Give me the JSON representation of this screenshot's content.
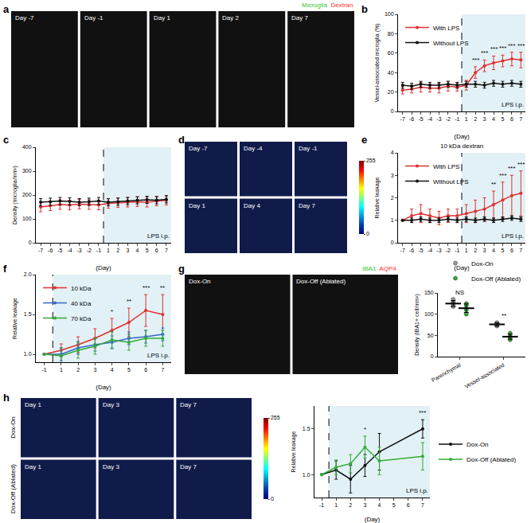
{
  "chart_data": [
    {
      "type": "line",
      "panel": "b",
      "categories": [
        "-7",
        "-6",
        "-5",
        "-4",
        "-3",
        "-2",
        "-1",
        "1",
        "2",
        "3",
        "4",
        "5",
        "6",
        "7"
      ],
      "series": [
        {
          "name": "With LPS",
          "color": "#e03030",
          "values": [
            22,
            23,
            25,
            24,
            24,
            26,
            25,
            27,
            40,
            47,
            50,
            52,
            54,
            53
          ],
          "errors": [
            4,
            4,
            5,
            4,
            5,
            5,
            4,
            5,
            6,
            6,
            7,
            6,
            7,
            8
          ]
        },
        {
          "name": "Without LPS",
          "color": "#111111",
          "values": [
            27,
            26,
            28,
            27,
            27,
            28,
            27,
            28,
            28,
            27,
            29,
            28,
            29,
            28
          ],
          "errors": [
            3,
            3,
            3,
            3,
            3,
            3,
            3,
            3,
            3,
            3,
            3,
            3,
            3,
            3
          ]
        }
      ],
      "x_label": "(Day)",
      "y_label": "Vessel-associated microglia (%)",
      "ylim": [
        0,
        100
      ],
      "yticks": [
        0,
        20,
        40,
        60,
        80,
        100
      ],
      "legend": "upper left",
      "shade_label": "LPS i.p.",
      "shade_from": "1",
      "annotations": [
        {
          "category": "2",
          "text": "***"
        },
        {
          "category": "3",
          "text": "***"
        },
        {
          "category": "4",
          "text": "***"
        },
        {
          "category": "5",
          "text": "***"
        },
        {
          "category": "6",
          "text": "***"
        },
        {
          "category": "7",
          "text": "***"
        }
      ]
    },
    {
      "type": "line",
      "panel": "c",
      "categories": [
        "-7",
        "-6",
        "-5",
        "-4",
        "-3",
        "-2",
        "-1",
        "1",
        "2",
        "3",
        "4",
        "5",
        "6",
        "7"
      ],
      "series": [
        {
          "name": "With LPS",
          "color": "#e03030",
          "values": [
            150,
            155,
            160,
            158,
            162,
            160,
            158,
            165,
            168,
            170,
            172,
            170,
            175,
            178
          ],
          "errors": [
            20,
            20,
            20,
            20,
            20,
            20,
            20,
            20,
            20,
            20,
            20,
            20,
            20,
            20
          ]
        },
        {
          "name": "Without LPS",
          "color": "#111111",
          "values": [
            170,
            172,
            175,
            173,
            170,
            172,
            175,
            170,
            172,
            175,
            178,
            180,
            178,
            182
          ],
          "errors": [
            15,
            15,
            15,
            15,
            15,
            15,
            15,
            15,
            15,
            15,
            15,
            15,
            15,
            15
          ]
        }
      ],
      "x_label": "(Day)",
      "y_label": "Density (microglia/mm²)",
      "ylim": [
        0,
        400
      ],
      "yticks": [
        0,
        100,
        200,
        300,
        400
      ],
      "shade_label": "LPS i.p.",
      "shade_from": "1",
      "annotations": []
    },
    {
      "type": "line",
      "panel": "e",
      "title": "10 kDa dextran",
      "categories": [
        "-7",
        "-6",
        "-5",
        "-4",
        "-3",
        "-2",
        "-1",
        "1",
        "2",
        "3",
        "4",
        "5",
        "6",
        "7"
      ],
      "series": [
        {
          "name": "With LPS",
          "color": "#e03030",
          "values": [
            1.0,
            1.2,
            1.3,
            1.2,
            1.1,
            1.2,
            1.2,
            1.3,
            1.4,
            1.5,
            1.7,
            1.9,
            2.1,
            2.2
          ],
          "errors": [
            0,
            0.3,
            0.4,
            0.3,
            0.3,
            0.3,
            0.3,
            0.4,
            0.5,
            0.5,
            0.6,
            0.8,
            0.9,
            1.0
          ]
        },
        {
          "name": "Without LPS",
          "color": "#111111",
          "values": [
            1.0,
            1.0,
            1.05,
            1.0,
            1.0,
            1.05,
            1.0,
            1.05,
            1.0,
            1.05,
            1.0,
            1.05,
            1.1,
            1.05
          ],
          "errors": [
            0,
            0.1,
            0.1,
            0.1,
            0.1,
            0.1,
            0.1,
            0.1,
            0.1,
            0.1,
            0.1,
            0.1,
            0.1,
            0.1
          ]
        }
      ],
      "x_label": "(Day)",
      "y_label": "Relative leakage",
      "ylim": [
        0,
        4
      ],
      "yticks": [
        0,
        1,
        2,
        3,
        4
      ],
      "legend": "upper left",
      "shade_label": "LPS i.p.",
      "shade_from": "1",
      "annotations": [
        {
          "category": "4",
          "text": "**"
        },
        {
          "category": "5",
          "text": "***"
        },
        {
          "category": "6",
          "text": "***"
        },
        {
          "category": "7",
          "text": "***"
        }
      ]
    },
    {
      "type": "line",
      "panel": "f",
      "categories": [
        "-1",
        "1",
        "2",
        "3",
        "4",
        "5",
        "6",
        "7"
      ],
      "series": [
        {
          "name": "10 kDa",
          "color": "#e03030",
          "values": [
            1.0,
            1.05,
            1.12,
            1.2,
            1.3,
            1.4,
            1.55,
            1.5
          ],
          "errors": [
            0,
            0.08,
            0.1,
            0.12,
            0.15,
            0.18,
            0.2,
            0.25
          ]
        },
        {
          "name": "40 kDa",
          "color": "#3366cc",
          "values": [
            1.0,
            1.0,
            1.08,
            1.12,
            1.15,
            1.2,
            1.22,
            1.25
          ],
          "errors": [
            0,
            0.08,
            0.08,
            0.08,
            0.08,
            0.08,
            0.08,
            0.08
          ]
        },
        {
          "name": "70 kDa",
          "color": "#33aa33",
          "values": [
            1.0,
            0.98,
            1.05,
            1.1,
            1.18,
            1.15,
            1.2,
            1.2
          ],
          "errors": [
            0,
            0.1,
            0.1,
            0.1,
            0.1,
            0.1,
            0.1,
            0.1
          ]
        }
      ],
      "x_label": "(Day)",
      "y_label": "Relative leakage",
      "ylim": [
        0.9,
        2.0
      ],
      "yticks": [
        {
          "value": 1,
          "label": "1.0"
        },
        1.5,
        {
          "value": 2,
          "label": "2.0"
        }
      ],
      "legend": "upper left",
      "shade_label": "LPS i.p.",
      "shade_from": "1",
      "annotations": [
        {
          "category": "4",
          "text": "*"
        },
        {
          "category": "5",
          "text": "**"
        },
        {
          "category": "6",
          "text": "***"
        },
        {
          "category": "7",
          "text": "**"
        }
      ]
    },
    {
      "type": "dot",
      "categories": [
        "Parenchymal",
        "Vessel-associated"
      ],
      "series": [
        {
          "name": "Dox-On",
          "color": "#999999",
          "points": [
            [
              120,
              128,
              125,
              135,
              118
            ],
            [
              72,
              78,
              80,
              74
            ]
          ],
          "values": [
            125,
            76
          ],
          "errors": [
            7,
            4
          ]
        },
        {
          "name": "Dox-Off (Ablated)",
          "color": "#33aa33",
          "points": [
            [
              110,
              100,
              125,
              120
            ],
            [
              40,
              48,
              55,
              45
            ]
          ],
          "values": [
            114,
            47
          ],
          "errors": [
            10,
            6
          ]
        }
      ],
      "y_label": "Density (IBA1+ cell/mm²)",
      "ylim": [
        0,
        150
      ],
      "yticks": [
        0,
        50,
        100,
        150
      ],
      "legend": "upper right",
      "annotations": [
        {
          "category": "Parenchymal",
          "text": "NS"
        },
        {
          "category": "Vessel-associated",
          "text": "**"
        }
      ]
    },
    {
      "type": "line",
      "categories": [
        "-1",
        "1",
        "2",
        "3",
        "4",
        "5",
        "6",
        "7"
      ],
      "series": [
        {
          "name": "Dox-On",
          "color": "#111111",
          "values": [
            1.0,
            1.05,
            0.95,
            1.1,
            1.25,
            null,
            null,
            1.5
          ],
          "errors": [
            0,
            0.1,
            0.15,
            0.12,
            0.2,
            null,
            null,
            0.1
          ]
        },
        {
          "name": "Dox-Off (Ablated)",
          "color": "#33aa33",
          "values": [
            1.0,
            1.08,
            1.12,
            1.3,
            1.15,
            null,
            null,
            1.2
          ],
          "errors": [
            0,
            0.08,
            0.1,
            0.12,
            0.15,
            null,
            null,
            0.15
          ]
        }
      ],
      "x_label": "(Day)",
      "y_label": "Relative leakage",
      "ylim": [
        0.75,
        1.75
      ],
      "yticks": [
        {
          "value": 1,
          "label": "1.0"
        },
        1.5
      ],
      "legend": "right",
      "shade_label": "LPS i.p.",
      "shade_from": "1",
      "annotations": [
        {
          "category": "3",
          "text": "*"
        },
        {
          "category": "7",
          "text": "***"
        }
      ]
    }
  ],
  "image_panels": [
    {
      "panel": "a",
      "channels": [
        {
          "name": "Microglia",
          "color": "#33cc33"
        },
        {
          "name": "Dextran",
          "color": "#ff3333"
        }
      ],
      "tiles": [
        [
          "Day -7",
          "Day -1",
          "Day 1",
          "Day 2",
          "Day 7"
        ]
      ]
    },
    {
      "panel": "d",
      "tiles": [
        [
          "Day -7",
          "Day -4",
          "Day -1"
        ],
        [
          "Day 1",
          "Day 4",
          "Day 7"
        ]
      ],
      "colorbar": {
        "range": [
          0,
          255
        ],
        "ticks": [
          0,
          255
        ]
      }
    },
    {
      "panel": "g",
      "channels": [
        {
          "name": "IBA1",
          "color": "#33cc33"
        },
        {
          "name": "AQP4",
          "color": "#ff3333"
        }
      ],
      "tiles": [
        [
          "Dox-On",
          "Dox-Off (Ablated)"
        ]
      ]
    },
    {
      "panel": "h",
      "row_labels": [
        "Dox-On",
        "Dox-Off (Ablated)"
      ],
      "tiles": [
        [
          "Day 1",
          "Day 3",
          "Day 7"
        ],
        [
          "Day 1",
          "Day 3",
          "Day 7"
        ]
      ],
      "colorbar": {
        "range": [
          0,
          255
        ],
        "ticks": [
          0,
          255
        ]
      }
    }
  ]
}
